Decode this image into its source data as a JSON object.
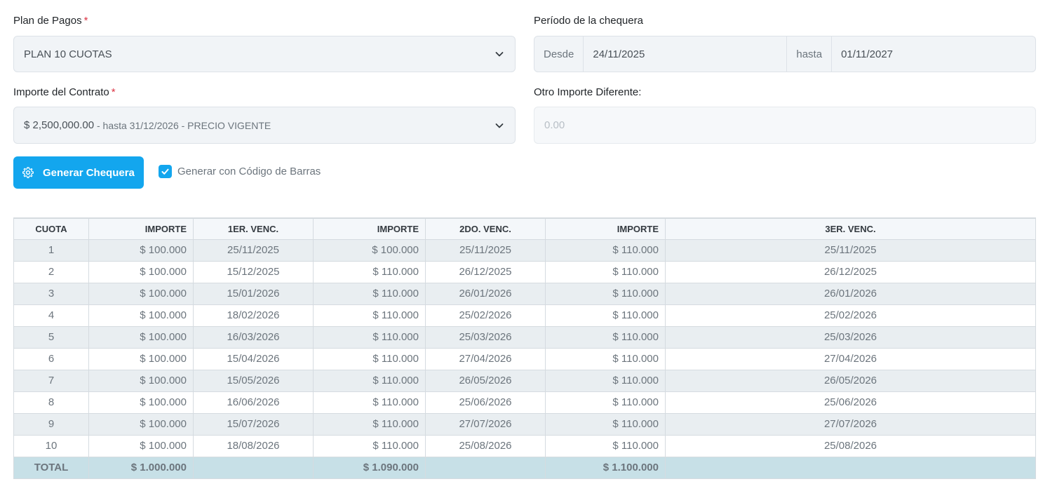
{
  "form": {
    "plan_label": "Plan de Pagos",
    "required_mark": "*",
    "plan_value": "PLAN 10 CUOTAS",
    "period_label": "Período de la chequera",
    "period_from_addon": "Desde",
    "period_from": "24/11/2025",
    "period_to_addon": "hasta",
    "period_to": "01/11/2027",
    "importe_label": "Importe del Contrato",
    "importe_amount": "$ 2,500,000.00",
    "importe_detail": " - hasta 31/12/2026 - PRECIO VIGENTE",
    "otro_label": "Otro Importe Diferente:",
    "otro_placeholder": "0.00",
    "generate_button": "Generar Chequera",
    "barcode_checkbox_label": "Generar con Código de Barras",
    "barcode_checked": true
  },
  "table": {
    "headers": [
      "CUOTA",
      "IMPORTE",
      "1ER. VENC.",
      "IMPORTE",
      "2DO. VENC.",
      "IMPORTE",
      "3ER. VENC."
    ],
    "rows": [
      [
        "1",
        "$ 100.000",
        "25/11/2025",
        "$ 100.000",
        "25/11/2025",
        "$ 110.000",
        "25/11/2025"
      ],
      [
        "2",
        "$ 100.000",
        "15/12/2025",
        "$ 110.000",
        "26/12/2025",
        "$ 110.000",
        "26/12/2025"
      ],
      [
        "3",
        "$ 100.000",
        "15/01/2026",
        "$ 110.000",
        "26/01/2026",
        "$ 110.000",
        "26/01/2026"
      ],
      [
        "4",
        "$ 100.000",
        "18/02/2026",
        "$ 110.000",
        "25/02/2026",
        "$ 110.000",
        "25/02/2026"
      ],
      [
        "5",
        "$ 100.000",
        "16/03/2026",
        "$ 110.000",
        "25/03/2026",
        "$ 110.000",
        "25/03/2026"
      ],
      [
        "6",
        "$ 100.000",
        "15/04/2026",
        "$ 110.000",
        "27/04/2026",
        "$ 110.000",
        "27/04/2026"
      ],
      [
        "7",
        "$ 100.000",
        "15/05/2026",
        "$ 110.000",
        "26/05/2026",
        "$ 110.000",
        "26/05/2026"
      ],
      [
        "8",
        "$ 100.000",
        "16/06/2026",
        "$ 110.000",
        "25/06/2026",
        "$ 110.000",
        "25/06/2026"
      ],
      [
        "9",
        "$ 100.000",
        "15/07/2026",
        "$ 110.000",
        "27/07/2026",
        "$ 110.000",
        "27/07/2026"
      ],
      [
        "10",
        "$ 100.000",
        "18/08/2026",
        "$ 110.000",
        "25/08/2026",
        "$ 110.000",
        "25/08/2026"
      ]
    ],
    "totals": {
      "label": "TOTAL",
      "importe1": "$ 1.000.000",
      "importe2": "$ 1.090.000",
      "importe3": "$ 1.100.000"
    }
  },
  "icons": {
    "select_chevron": "chevron-down-icon",
    "generate_button_icon": "gear-icon",
    "checkbox_mark": "check-icon"
  },
  "colors": {
    "primary": "#13a6ee",
    "required": "#dc3545",
    "total_row": "#c7e0e7",
    "striped_row": "#e9eef1"
  }
}
